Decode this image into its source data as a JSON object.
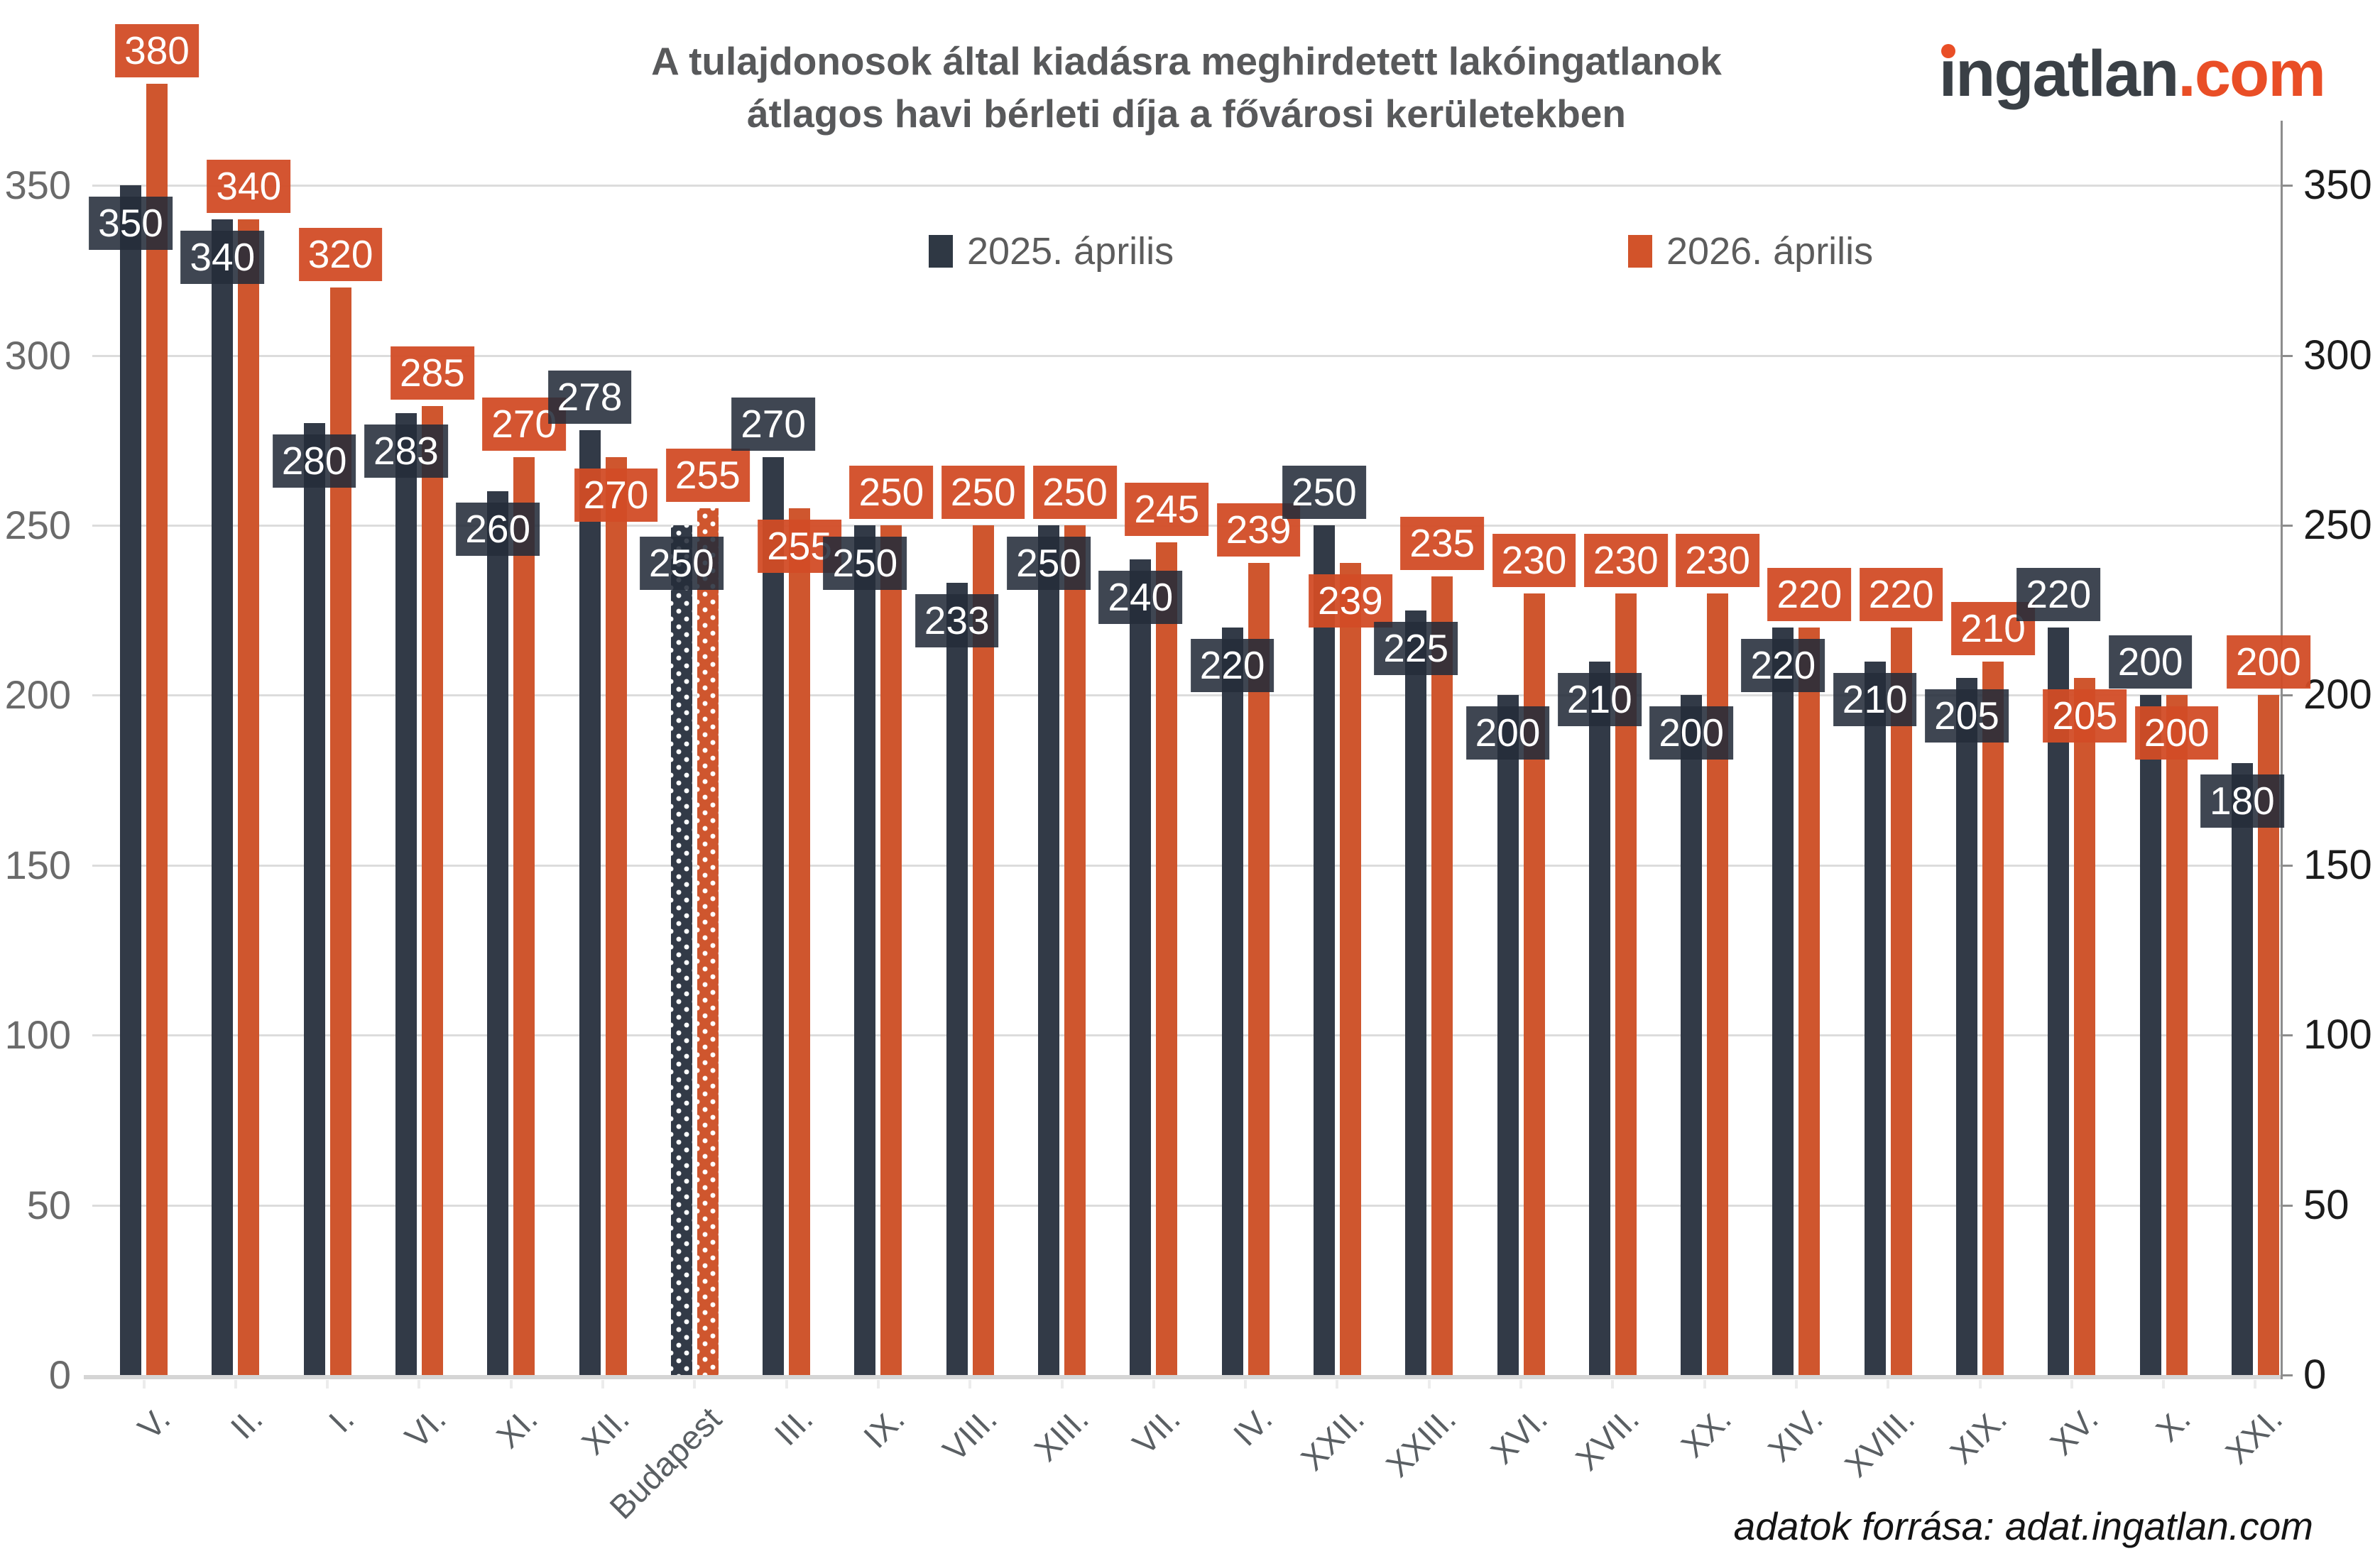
{
  "header": {
    "title_line1": "A tulajdonosok által kiadásra meghirdetett lakóingatlanok",
    "title_line2": "átlagos havi bérleti díja a fővárosi kerületekben",
    "logo": {
      "name": "ingatlan",
      "tld": ".com"
    }
  },
  "legend": [
    {
      "label": "2025. április",
      "color": "#2f3844"
    },
    {
      "label": "2026. április",
      "color": "#d2532a"
    }
  ],
  "footer": {
    "source": "adatok forrása: adat.ingatlan.com"
  },
  "colors": {
    "bar_2025": "#323a47",
    "bar_2026": "#cf562e",
    "label_box_2025": "rgba(36,44,58,0.88)",
    "label_box_2026": "rgba(210,76,38,0.95)",
    "title_text": "#58595b",
    "logo_dark": "#3a4046",
    "logo_orange": "#e94e26",
    "gridline": "#dcdcdc",
    "right_axis": "#8d8d8d"
  },
  "chart_data": {
    "type": "bar",
    "title": "A tulajdonosok által kiadásra meghirdetett lakóingatlanok átlagos havi bérleti díja a fővárosi kerületekben",
    "xlabel": "",
    "ylabel": "",
    "ylim": [
      0,
      350
    ],
    "yticks": [
      0,
      50,
      100,
      150,
      200,
      250,
      300,
      350
    ],
    "grid": true,
    "legend_position": "top",
    "axis_labels_sides": "both",
    "highlight_category": "Budapest",
    "highlight_style": "white polka-dot pattern on bars",
    "categories": [
      "V.",
      "II.",
      "I.",
      "VI.",
      "XI.",
      "XII.",
      "Budapest",
      "III.",
      "IX.",
      "VIII.",
      "XIII.",
      "VII.",
      "IV.",
      "XXII.",
      "XXIII.",
      "XVI.",
      "XVII.",
      "XX.",
      "XIV.",
      "XVIII.",
      "XIX.",
      "XV.",
      "X.",
      "XXI."
    ],
    "series": [
      {
        "name": "2025. április",
        "values": [
          350,
          340,
          280,
          283,
          260,
          278,
          250,
          270,
          250,
          233,
          250,
          240,
          220,
          250,
          225,
          200,
          210,
          200,
          220,
          210,
          205,
          220,
          200,
          180
        ]
      },
      {
        "name": "2026. április",
        "values": [
          380,
          340,
          320,
          285,
          270,
          270,
          255,
          255,
          250,
          250,
          250,
          245,
          239,
          239,
          235,
          230,
          230,
          230,
          220,
          220,
          210,
          205,
          200,
          200
        ]
      }
    ],
    "label_above": [
      "2026",
      "2026",
      "2026",
      "2026",
      "2026",
      "2025",
      "2026",
      "2025",
      "2026",
      "2026",
      "2026",
      "2026",
      "2026",
      "2025",
      "2026",
      "2026",
      "2026",
      "2026",
      "2026",
      "2026",
      "2026",
      "2025",
      "2025",
      "2026"
    ]
  }
}
